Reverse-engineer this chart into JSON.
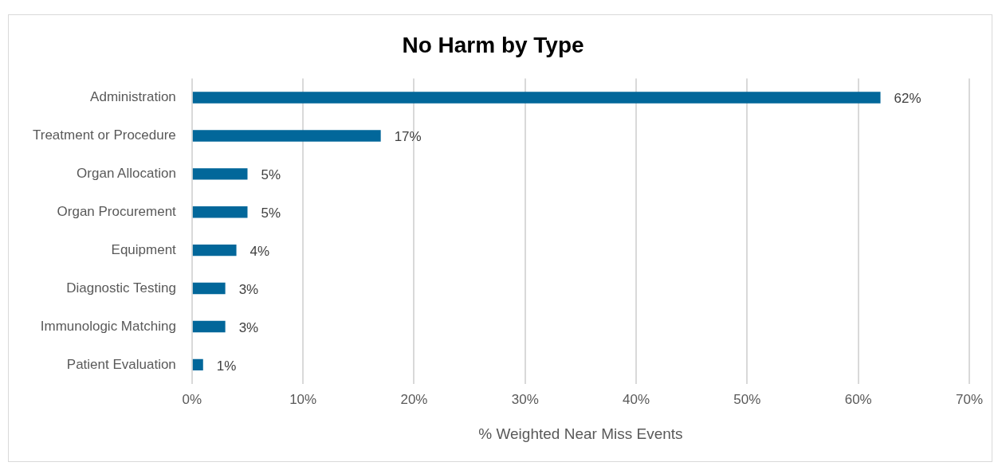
{
  "chart_data": {
    "type": "bar",
    "orientation": "horizontal",
    "title": "No Harm by Type",
    "xlabel": "% Weighted Near Miss Events",
    "categories": [
      "Administration",
      "Treatment or Procedure",
      "Organ Allocation",
      "Organ Procurement",
      "Equipment",
      "Diagnostic Testing",
      "Immunologic Matching",
      "Patient Evaluation"
    ],
    "values": [
      62,
      17,
      5,
      5,
      4,
      3,
      3,
      1
    ],
    "value_labels": [
      "62%",
      "17%",
      "5%",
      "5%",
      "4%",
      "3%",
      "3%",
      "1%"
    ],
    "color": "#02679a",
    "xlim": [
      0,
      70
    ],
    "xticks": [
      {
        "value": 0,
        "label": "0%"
      },
      {
        "value": 10,
        "label": "10%"
      },
      {
        "value": 20,
        "label": "20%"
      },
      {
        "value": 30,
        "label": "30%"
      },
      {
        "value": 40,
        "label": "40%"
      },
      {
        "value": 50,
        "label": "50%"
      },
      {
        "value": 60,
        "label": "60%"
      },
      {
        "value": 70,
        "label": "70%"
      }
    ],
    "grid": "x",
    "legend": false
  }
}
